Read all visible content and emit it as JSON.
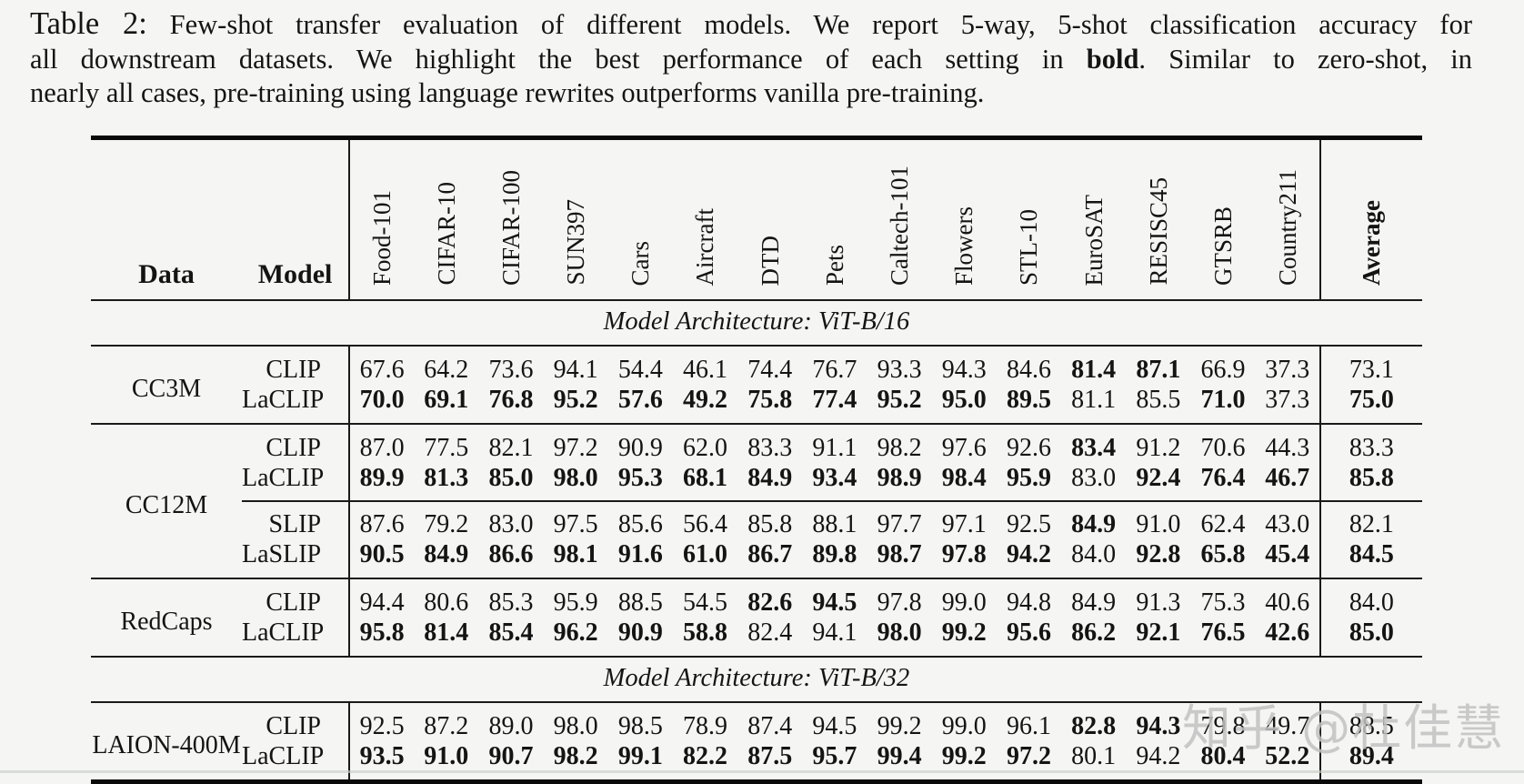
{
  "caption": {
    "label": "Table 2:",
    "lines": [
      [
        {
          "t": "Few-shot transfer evaluation of different models. We report 5-way, 5-shot classification accuracy for"
        }
      ],
      [
        {
          "t": "all downstream datasets. We highlight the best performance of each setting in "
        },
        {
          "t": "bold",
          "b": true
        },
        {
          "t": ". Similar to zero-shot, in"
        }
      ],
      [
        {
          "t": "nearly all cases, pre-training using language rewrites outperforms vanilla pre-training."
        }
      ]
    ]
  },
  "table": {
    "col_headers": {
      "data": "Data",
      "model": "Model",
      "datasets": [
        "Food-101",
        "CIFAR-10",
        "CIFAR-100",
        "SUN397",
        "Cars",
        "Aircraft",
        "DTD",
        "Pets",
        "Caltech-101",
        "Flowers",
        "STL-10",
        "EuroSAT",
        "RESISC45",
        "GTSRB",
        "Country211"
      ],
      "average": "Average"
    },
    "sections": [
      {
        "architecture": "Model Architecture: ViT-B/16",
        "blocks": [
          {
            "data": "CC3M",
            "groups": [
              {
                "rows": [
                  {
                    "model": "CLIP",
                    "values": [
                      "67.6",
                      "64.2",
                      "73.6",
                      "94.1",
                      "54.4",
                      "46.1",
                      "74.4",
                      "76.7",
                      "93.3",
                      "94.3",
                      "84.6",
                      "81.4",
                      "87.1",
                      "66.9",
                      "37.3"
                    ],
                    "bold": [
                      0,
                      0,
                      0,
                      0,
                      0,
                      0,
                      0,
                      0,
                      0,
                      0,
                      0,
                      1,
                      1,
                      0,
                      0
                    ],
                    "avg": "73.1",
                    "avg_bold": false
                  },
                  {
                    "model": "LaCLIP",
                    "values": [
                      "70.0",
                      "69.1",
                      "76.8",
                      "95.2",
                      "57.6",
                      "49.2",
                      "75.8",
                      "77.4",
                      "95.2",
                      "95.0",
                      "89.5",
                      "81.1",
                      "85.5",
                      "71.0",
                      "37.3"
                    ],
                    "bold": [
                      1,
                      1,
                      1,
                      1,
                      1,
                      1,
                      1,
                      1,
                      1,
                      1,
                      1,
                      0,
                      0,
                      1,
                      0
                    ],
                    "avg": "75.0",
                    "avg_bold": true
                  }
                ]
              }
            ]
          },
          {
            "data": "CC12M",
            "groups": [
              {
                "rows": [
                  {
                    "model": "CLIP",
                    "values": [
                      "87.0",
                      "77.5",
                      "82.1",
                      "97.2",
                      "90.9",
                      "62.0",
                      "83.3",
                      "91.1",
                      "98.2",
                      "97.6",
                      "92.6",
                      "83.4",
                      "91.2",
                      "70.6",
                      "44.3"
                    ],
                    "bold": [
                      0,
                      0,
                      0,
                      0,
                      0,
                      0,
                      0,
                      0,
                      0,
                      0,
                      0,
                      1,
                      0,
                      0,
                      0
                    ],
                    "avg": "83.3",
                    "avg_bold": false
                  },
                  {
                    "model": "LaCLIP",
                    "values": [
                      "89.9",
                      "81.3",
                      "85.0",
                      "98.0",
                      "95.3",
                      "68.1",
                      "84.9",
                      "93.4",
                      "98.9",
                      "98.4",
                      "95.9",
                      "83.0",
                      "92.4",
                      "76.4",
                      "46.7"
                    ],
                    "bold": [
                      1,
                      1,
                      1,
                      1,
                      1,
                      1,
                      1,
                      1,
                      1,
                      1,
                      1,
                      0,
                      1,
                      1,
                      1
                    ],
                    "avg": "85.8",
                    "avg_bold": true
                  }
                ]
              },
              {
                "rows": [
                  {
                    "model": "SLIP",
                    "values": [
                      "87.6",
                      "79.2",
                      "83.0",
                      "97.5",
                      "85.6",
                      "56.4",
                      "85.8",
                      "88.1",
                      "97.7",
                      "97.1",
                      "92.5",
                      "84.9",
                      "91.0",
                      "62.4",
                      "43.0"
                    ],
                    "bold": [
                      0,
                      0,
                      0,
                      0,
                      0,
                      0,
                      0,
                      0,
                      0,
                      0,
                      0,
                      1,
                      0,
                      0,
                      0
                    ],
                    "avg": "82.1",
                    "avg_bold": false
                  },
                  {
                    "model": "LaSLIP",
                    "values": [
                      "90.5",
                      "84.9",
                      "86.6",
                      "98.1",
                      "91.6",
                      "61.0",
                      "86.7",
                      "89.8",
                      "98.7",
                      "97.8",
                      "94.2",
                      "84.0",
                      "92.8",
                      "65.8",
                      "45.4"
                    ],
                    "bold": [
                      1,
                      1,
                      1,
                      1,
                      1,
                      1,
                      1,
                      1,
                      1,
                      1,
                      1,
                      0,
                      1,
                      1,
                      1
                    ],
                    "avg": "84.5",
                    "avg_bold": true
                  }
                ]
              }
            ]
          },
          {
            "data": "RedCaps",
            "groups": [
              {
                "rows": [
                  {
                    "model": "CLIP",
                    "values": [
                      "94.4",
                      "80.6",
                      "85.3",
                      "95.9",
                      "88.5",
                      "54.5",
                      "82.6",
                      "94.5",
                      "97.8",
                      "99.0",
                      "94.8",
                      "84.9",
                      "91.3",
                      "75.3",
                      "40.6"
                    ],
                    "bold": [
                      0,
                      0,
                      0,
                      0,
                      0,
                      0,
                      1,
                      1,
                      0,
                      0,
                      0,
                      0,
                      0,
                      0,
                      0
                    ],
                    "avg": "84.0",
                    "avg_bold": false
                  },
                  {
                    "model": "LaCLIP",
                    "values": [
                      "95.8",
                      "81.4",
                      "85.4",
                      "96.2",
                      "90.9",
                      "58.8",
                      "82.4",
                      "94.1",
                      "98.0",
                      "99.2",
                      "95.6",
                      "86.2",
                      "92.1",
                      "76.5",
                      "42.6"
                    ],
                    "bold": [
                      1,
                      1,
                      1,
                      1,
                      1,
                      1,
                      0,
                      0,
                      1,
                      1,
                      1,
                      1,
                      1,
                      1,
                      1
                    ],
                    "avg": "85.0",
                    "avg_bold": true
                  }
                ]
              }
            ]
          }
        ]
      },
      {
        "architecture": "Model Architecture: ViT-B/32",
        "blocks": [
          {
            "data": "LAION-400M",
            "groups": [
              {
                "rows": [
                  {
                    "model": "CLIP",
                    "values": [
                      "92.5",
                      "87.2",
                      "89.0",
                      "98.0",
                      "98.5",
                      "78.9",
                      "87.4",
                      "94.5",
                      "99.2",
                      "99.0",
                      "96.1",
                      "82.8",
                      "94.3",
                      "79.8",
                      "49.7"
                    ],
                    "bold": [
                      0,
                      0,
                      0,
                      0,
                      0,
                      0,
                      0,
                      0,
                      0,
                      0,
                      0,
                      1,
                      1,
                      0,
                      0
                    ],
                    "avg": "88.5",
                    "avg_bold": false
                  },
                  {
                    "model": "LaCLIP",
                    "values": [
                      "93.5",
                      "91.0",
                      "90.7",
                      "98.2",
                      "99.1",
                      "82.2",
                      "87.5",
                      "95.7",
                      "99.4",
                      "99.2",
                      "97.2",
                      "80.1",
                      "94.2",
                      "80.4",
                      "52.2"
                    ],
                    "bold": [
                      1,
                      1,
                      1,
                      1,
                      1,
                      1,
                      1,
                      1,
                      1,
                      1,
                      1,
                      0,
                      0,
                      1,
                      1
                    ],
                    "avg": "89.4",
                    "avg_bold": true
                  }
                ]
              }
            ]
          }
        ]
      }
    ]
  },
  "watermark": "知乎 @杜佳慧"
}
